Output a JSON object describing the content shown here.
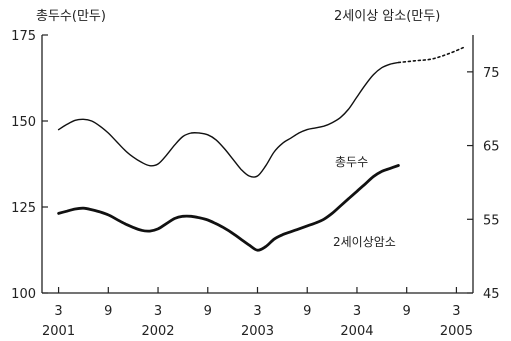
{
  "chart_data": {
    "type": "line",
    "left_axis_title": "총두수(만두)",
    "right_axis_title": "2세이상 암소(만두)",
    "x_unit": "month-index (3 = 2001 Mar)",
    "x_ticks": [
      {
        "x": 3,
        "month": "3",
        "year": "2001"
      },
      {
        "x": 9,
        "month": "9",
        "year": ""
      },
      {
        "x": 15,
        "month": "3",
        "year": "2002"
      },
      {
        "x": 21,
        "month": "9",
        "year": ""
      },
      {
        "x": 27,
        "month": "3",
        "year": "2003"
      },
      {
        "x": 33,
        "month": "9",
        "year": ""
      },
      {
        "x": 39,
        "month": "3",
        "year": "2004"
      },
      {
        "x": 45,
        "month": "9",
        "year": ""
      },
      {
        "x": 51,
        "month": "3",
        "year": "2005"
      }
    ],
    "y_left": {
      "min": 100,
      "max": 175,
      "ticks": [
        "175",
        "150",
        "125",
        "100"
      ],
      "tick_values": [
        175,
        150,
        125,
        100
      ]
    },
    "y_right": {
      "min": 45,
      "max": 80,
      "ticks": [
        "75",
        "65",
        "55",
        "45"
      ],
      "tick_values": [
        75,
        65,
        55,
        45
      ]
    },
    "series": [
      {
        "name": "총두수",
        "axis": "left",
        "label_text": "총두수",
        "points": [
          {
            "x": 3,
            "y": 147.5
          },
          {
            "x": 4,
            "y": 149
          },
          {
            "x": 5,
            "y": 150.2
          },
          {
            "x": 6,
            "y": 150.5
          },
          {
            "x": 7,
            "y": 150
          },
          {
            "x": 8,
            "y": 148.5
          },
          {
            "x": 9,
            "y": 146.5
          },
          {
            "x": 10,
            "y": 144
          },
          {
            "x": 11,
            "y": 141.5
          },
          {
            "x": 12,
            "y": 139.5
          },
          {
            "x": 13,
            "y": 138
          },
          {
            "x": 14,
            "y": 137
          },
          {
            "x": 15,
            "y": 137.5
          },
          {
            "x": 16,
            "y": 140
          },
          {
            "x": 17,
            "y": 143
          },
          {
            "x": 18,
            "y": 145.5
          },
          {
            "x": 19,
            "y": 146.5
          },
          {
            "x": 20,
            "y": 146.5
          },
          {
            "x": 21,
            "y": 146
          },
          {
            "x": 22,
            "y": 144.5
          },
          {
            "x": 23,
            "y": 142
          },
          {
            "x": 24,
            "y": 139
          },
          {
            "x": 25,
            "y": 136
          },
          {
            "x": 26,
            "y": 134
          },
          {
            "x": 27,
            "y": 134
          },
          {
            "x": 28,
            "y": 137
          },
          {
            "x": 29,
            "y": 141
          },
          {
            "x": 30,
            "y": 143.5
          },
          {
            "x": 31,
            "y": 145
          },
          {
            "x": 32,
            "y": 146.5
          },
          {
            "x": 33,
            "y": 147.5
          },
          {
            "x": 34,
            "y": 148
          },
          {
            "x": 35,
            "y": 148.5
          },
          {
            "x": 36,
            "y": 149.5
          },
          {
            "x": 37,
            "y": 151
          },
          {
            "x": 38,
            "y": 153.5
          },
          {
            "x": 39,
            "y": 157
          },
          {
            "x": 40,
            "y": 160.5
          },
          {
            "x": 41,
            "y": 163.5
          },
          {
            "x": 42,
            "y": 165.5
          },
          {
            "x": 43,
            "y": 166.5
          },
          {
            "x": 44,
            "y": 167
          }
        ],
        "projection": [
          {
            "x": 44,
            "y": 167
          },
          {
            "x": 46,
            "y": 167.5
          },
          {
            "x": 48,
            "y": 168
          },
          {
            "x": 50,
            "y": 169.5
          },
          {
            "x": 52,
            "y": 171.5
          }
        ]
      },
      {
        "name": "2세이상암소",
        "axis": "right",
        "label_text": "2세이상암소",
        "points": [
          {
            "x": 3,
            "y": 55.8
          },
          {
            "x": 4,
            "y": 56.1
          },
          {
            "x": 5,
            "y": 56.4
          },
          {
            "x": 6,
            "y": 56.5
          },
          {
            "x": 7,
            "y": 56.3
          },
          {
            "x": 8,
            "y": 56
          },
          {
            "x": 9,
            "y": 55.6
          },
          {
            "x": 10,
            "y": 55
          },
          {
            "x": 11,
            "y": 54.4
          },
          {
            "x": 12,
            "y": 53.9
          },
          {
            "x": 13,
            "y": 53.5
          },
          {
            "x": 14,
            "y": 53.4
          },
          {
            "x": 15,
            "y": 53.7
          },
          {
            "x": 16,
            "y": 54.4
          },
          {
            "x": 17,
            "y": 55.1
          },
          {
            "x": 18,
            "y": 55.4
          },
          {
            "x": 19,
            "y": 55.4
          },
          {
            "x": 20,
            "y": 55.2
          },
          {
            "x": 21,
            "y": 54.9
          },
          {
            "x": 22,
            "y": 54.4
          },
          {
            "x": 23,
            "y": 53.8
          },
          {
            "x": 24,
            "y": 53.1
          },
          {
            "x": 25,
            "y": 52.3
          },
          {
            "x": 26,
            "y": 51.5
          },
          {
            "x": 27,
            "y": 50.8
          },
          {
            "x": 28,
            "y": 51.3
          },
          {
            "x": 29,
            "y": 52.3
          },
          {
            "x": 30,
            "y": 52.9
          },
          {
            "x": 31,
            "y": 53.3
          },
          {
            "x": 32,
            "y": 53.7
          },
          {
            "x": 33,
            "y": 54.1
          },
          {
            "x": 34,
            "y": 54.5
          },
          {
            "x": 35,
            "y": 55
          },
          {
            "x": 36,
            "y": 55.8
          },
          {
            "x": 37,
            "y": 56.8
          },
          {
            "x": 38,
            "y": 57.8
          },
          {
            "x": 39,
            "y": 58.8
          },
          {
            "x": 40,
            "y": 59.8
          },
          {
            "x": 41,
            "y": 60.8
          },
          {
            "x": 42,
            "y": 61.5
          },
          {
            "x": 43,
            "y": 61.9
          },
          {
            "x": 44,
            "y": 62.3
          }
        ]
      }
    ]
  }
}
